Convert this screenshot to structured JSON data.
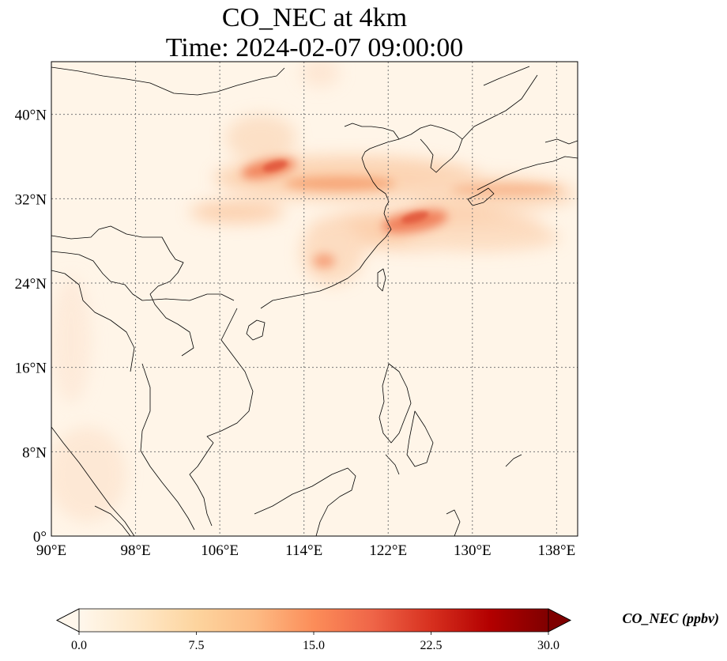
{
  "title": {
    "line1": "CO_NEC at 4km",
    "line2": "Time: 2024-02-07 09:00:00"
  },
  "map": {
    "extent": {
      "lon": [
        90,
        140
      ],
      "lat": [
        0,
        45
      ]
    },
    "lon_ticks": [
      {
        "value": 90,
        "label": "90°E"
      },
      {
        "value": 98,
        "label": "98°E"
      },
      {
        "value": 106,
        "label": "106°E"
      },
      {
        "value": 114,
        "label": "114°E"
      },
      {
        "value": 122,
        "label": "122°E"
      },
      {
        "value": 130,
        "label": "130°E"
      },
      {
        "value": 138,
        "label": "138°E"
      }
    ],
    "lat_ticks": [
      {
        "value": 0,
        "label": "0°"
      },
      {
        "value": 8,
        "label": "8°N"
      },
      {
        "value": 16,
        "label": "16°N"
      },
      {
        "value": 24,
        "label": "24°N"
      },
      {
        "value": 32,
        "label": "32°N"
      },
      {
        "value": 40,
        "label": "40°N"
      }
    ],
    "gridlines": true,
    "background_color": "#fff5e8",
    "plume_color_mid": "#f6a26f",
    "plume_color_high": "#e0503a"
  },
  "colorbar": {
    "label": "CO_NEC (ppbv)",
    "min": 0.0,
    "max": 30.0,
    "extend": "both",
    "colormap": "OrRd",
    "ticks": [
      {
        "value": 0.0,
        "label": "0.0"
      },
      {
        "value": 7.5,
        "label": "7.5"
      },
      {
        "value": 15.0,
        "label": "15.0"
      },
      {
        "value": 22.5,
        "label": "22.5"
      },
      {
        "value": 30.0,
        "label": "30.0"
      }
    ],
    "stops": [
      "#fff7ec",
      "#fee8c8",
      "#fdd49e",
      "#fdbb84",
      "#fc8d59",
      "#ef6548",
      "#d7301f",
      "#b30000",
      "#7f0000"
    ]
  }
}
